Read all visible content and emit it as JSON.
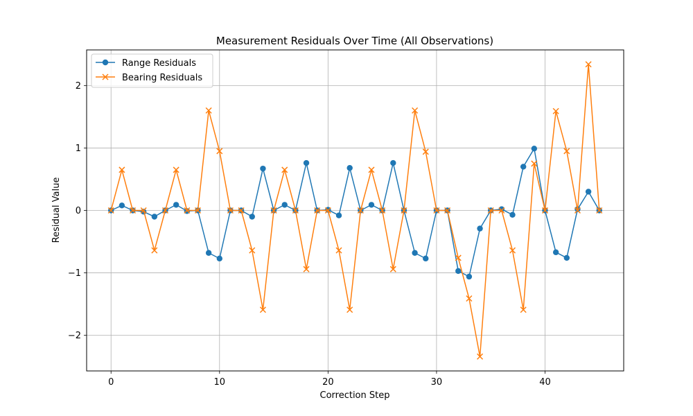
{
  "chart_data": {
    "type": "line",
    "title": "Measurement Residuals Over Time (All Observations)",
    "xlabel": "Correction Step",
    "ylabel": "Residual Value",
    "xlim": [
      -2.25,
      47.25
    ],
    "ylim": [
      -2.57,
      2.57
    ],
    "x_ticks": [
      0,
      10,
      20,
      30,
      40
    ],
    "y_ticks": [
      -2,
      -1,
      0,
      1,
      2
    ],
    "grid": true,
    "legend_position": "top-left",
    "x": [
      0,
      1,
      2,
      3,
      4,
      5,
      6,
      7,
      8,
      9,
      10,
      11,
      12,
      13,
      14,
      15,
      16,
      17,
      18,
      19,
      20,
      21,
      22,
      23,
      24,
      25,
      26,
      27,
      28,
      29,
      30,
      31,
      32,
      33,
      34,
      35,
      36,
      37,
      38,
      39,
      40,
      41,
      42,
      43,
      44,
      45
    ],
    "series": [
      {
        "name": "Range Residuals",
        "color": "#1f77b4",
        "marker": "circle",
        "values": [
          0,
          0.08,
          0,
          -0.02,
          -0.1,
          0,
          0.09,
          -0.01,
          0,
          -0.68,
          -0.77,
          0,
          0,
          -0.1,
          0.67,
          0,
          0.09,
          0,
          0.76,
          0,
          0.01,
          -0.08,
          0.68,
          0,
          0.09,
          0,
          0.76,
          0,
          -0.68,
          -0.77,
          0,
          0,
          -0.97,
          -1.06,
          -0.29,
          0,
          0.02,
          -0.07,
          0.7,
          0.99,
          0,
          -0.67,
          -0.76,
          0.02,
          0.3,
          0
        ]
      },
      {
        "name": "Bearing Residuals",
        "color": "#ff7f0e",
        "marker": "x",
        "values": [
          0,
          0.65,
          0,
          0,
          -0.64,
          0,
          0.65,
          0,
          0,
          1.6,
          0.95,
          0,
          0,
          -0.64,
          -1.59,
          0,
          0.65,
          0,
          -0.94,
          0,
          0,
          -0.64,
          -1.59,
          0,
          0.65,
          0,
          -0.94,
          0,
          1.6,
          0.94,
          0,
          0,
          -0.76,
          -1.41,
          -2.34,
          0,
          0,
          -0.64,
          -1.59,
          0.75,
          0,
          1.59,
          0.95,
          0,
          2.34,
          0
        ]
      }
    ]
  }
}
